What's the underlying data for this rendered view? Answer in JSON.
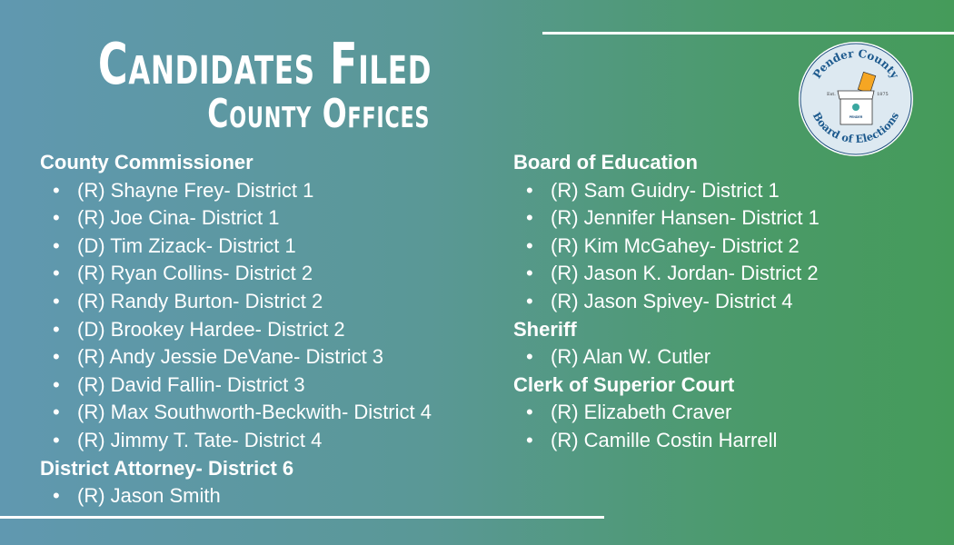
{
  "title": "Candidates Filed",
  "subtitle": "County Offices",
  "logo": {
    "top_text": "Pender County",
    "bottom_text": "Board of Elections",
    "est": "Est.",
    "year": "1875",
    "box_label": "PENDER"
  },
  "left": [
    {
      "type": "header",
      "text": "County Commissioner"
    },
    {
      "type": "item",
      "text": "(R) Shayne Frey- District 1"
    },
    {
      "type": "item",
      "text": "(R) Joe Cina- District 1"
    },
    {
      "type": "item",
      "text": "(D) Tim Zizack- District 1"
    },
    {
      "type": "item",
      "text": "(R) Ryan Collins- District 2"
    },
    {
      "type": "item",
      "text": "(R) Randy Burton- District 2"
    },
    {
      "type": "item",
      "text": "(D) Brookey Hardee- District 2"
    },
    {
      "type": "item",
      "text": "(R) Andy Jessie DeVane- District 3"
    },
    {
      "type": "item",
      "text": "(R) David Fallin- District 3"
    },
    {
      "type": "item",
      "text": "(R) Max Southworth-Beckwith- District 4"
    },
    {
      "type": "item",
      "text": "(R) Jimmy T. Tate- District 4"
    },
    {
      "type": "header",
      "text": "District Attorney- District 6"
    },
    {
      "type": "item",
      "text": "(R) Jason Smith"
    }
  ],
  "right": [
    {
      "type": "header",
      "text": "Board of Education"
    },
    {
      "type": "item",
      "text": "(R) Sam Guidry- District 1"
    },
    {
      "type": "item",
      "text": "(R) Jennifer Hansen- District 1"
    },
    {
      "type": "item",
      "text": "(R) Kim McGahey- District 2"
    },
    {
      "type": "item",
      "text": "(R) Jason K. Jordan- District 2"
    },
    {
      "type": "item",
      "text": "(R) Jason Spivey- District 4"
    },
    {
      "type": "header",
      "text": "Sheriff"
    },
    {
      "type": "item",
      "text": "(R) Alan W. Cutler"
    },
    {
      "type": "header",
      "text": "Clerk of Superior Court"
    },
    {
      "type": "item",
      "text": "(R) Elizabeth Craver"
    },
    {
      "type": "item",
      "text": "(R) Camille Costin Harrell"
    }
  ],
  "bullet": "•"
}
